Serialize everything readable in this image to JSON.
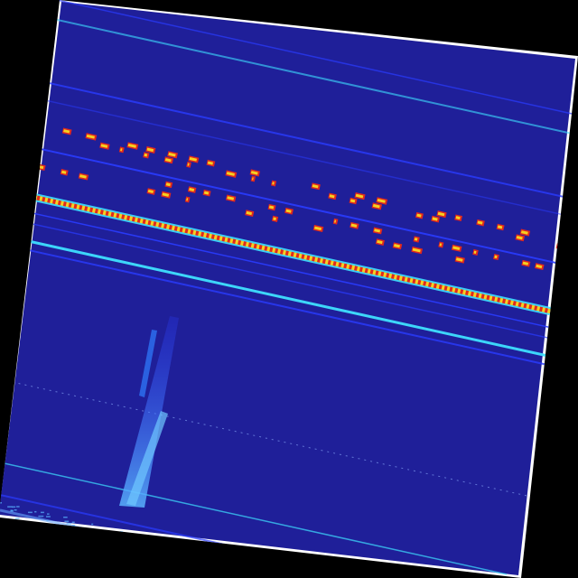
{
  "colors": {
    "background": "#000000",
    "frame": "#ffffff",
    "field": "#1f1f99",
    "line_blue": "#2a3cff",
    "line_cyan": "#3fe0ff",
    "hot_red": "#e0281e",
    "hot_yellow": "#f5d020",
    "streak": "#2f7dff"
  }
}
